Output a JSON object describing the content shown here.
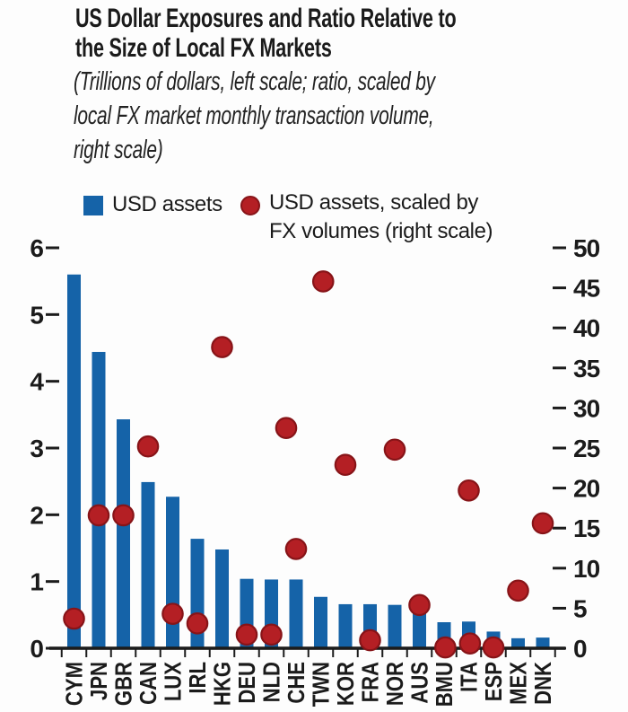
{
  "title": {
    "line1": "US Dollar Exposures and Ratio Relative to",
    "line2": "the Size of Local FX Markets"
  },
  "subtitle": {
    "line1": "(Trillions of dollars, left scale; ratio, scaled by",
    "line2": "local FX market monthly transaction volume,",
    "line3": "right scale)"
  },
  "legend": {
    "bar_label": "USD assets",
    "dot_label_line1": "USD assets, scaled by",
    "dot_label_line2": "FX volumes (right scale)"
  },
  "colors": {
    "bar": "#1563a8",
    "dot": "#b41f24",
    "dot_edge": "#871418",
    "axis": "#1c1c1c",
    "text": "#1b1b1b"
  },
  "chart_data": {
    "type": "bar+scatter",
    "title": "US Dollar Exposures and Ratio Relative to the Size of Local FX Markets",
    "subtitle": "Trillions of dollars, left scale; ratio, scaled by local FX market monthly transaction volume, right scale",
    "categories": [
      "CYM",
      "JPN",
      "GBR",
      "CAN",
      "LUX",
      "IRL",
      "HKG",
      "DEU",
      "NLD",
      "CHE",
      "TWN",
      "KOR",
      "FRA",
      "NOR",
      "AUS",
      "BMU",
      "ITA",
      "ESP",
      "MEX",
      "DNK"
    ],
    "series": [
      {
        "name": "USD assets",
        "type": "bar",
        "axis": "left",
        "values": [
          5.6,
          4.44,
          3.43,
          2.49,
          2.27,
          1.64,
          1.48,
          1.04,
          1.03,
          1.03,
          0.77,
          0.66,
          0.66,
          0.65,
          0.54,
          0.39,
          0.4,
          0.25,
          0.15,
          0.16
        ]
      },
      {
        "name": "USD assets, scaled by FX volumes (right scale)",
        "type": "scatter",
        "axis": "right",
        "points": [
          {
            "x": 0,
            "y": 3.7
          },
          {
            "x": 1,
            "y": 16.6
          },
          {
            "x": 2,
            "y": 16.6
          },
          {
            "x": 3,
            "y": 25.2
          },
          {
            "x": 4,
            "y": 4.3
          },
          {
            "x": 5,
            "y": 3.1
          },
          {
            "x": 6,
            "y": 37.6
          },
          {
            "x": 7,
            "y": 1.7
          },
          {
            "x": 8,
            "y": 1.7
          },
          {
            "x": 8.6,
            "y": 27.5
          },
          {
            "x": 9,
            "y": 12.4
          },
          {
            "x": 10.1,
            "y": 45.8
          },
          {
            "x": 11,
            "y": 22.9
          },
          {
            "x": 12,
            "y": 1.0
          },
          {
            "x": 13,
            "y": 24.8
          },
          {
            "x": 14,
            "y": 5.4
          },
          {
            "x": 15.05,
            "y": 0.1
          },
          {
            "x": 16,
            "y": 19.7
          },
          {
            "x": 16.05,
            "y": 0.6
          },
          {
            "x": 17,
            "y": 0.1
          },
          {
            "x": 18,
            "y": 7.2
          },
          {
            "x": 19,
            "y": 15.6
          }
        ]
      }
    ],
    "left_axis": {
      "range": [
        0,
        6
      ],
      "ticks": [
        0,
        1,
        2,
        3,
        4,
        5,
        6
      ]
    },
    "right_axis": {
      "range": [
        0,
        50
      ],
      "ticks": [
        0,
        5,
        10,
        15,
        20,
        25,
        30,
        35,
        40,
        45,
        50
      ]
    },
    "grid": false,
    "legend_position": "top"
  }
}
